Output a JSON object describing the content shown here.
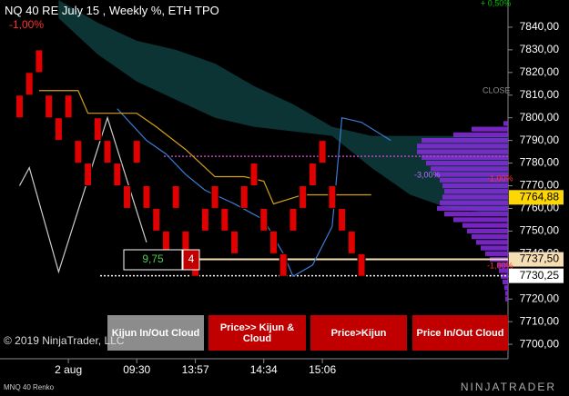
{
  "chart_data": {
    "type": "renko",
    "title": "NQ 40 RE July 15 , Weekly %, ETH TPO",
    "subtitle": "MNQ 40 Renko",
    "ylim": [
      7686.8,
      7852
    ],
    "yticks": [
      {
        "value": 7840,
        "label": "7840,00"
      },
      {
        "value": 7830,
        "label": "7830,00"
      },
      {
        "value": 7820,
        "label": "7820,00"
      },
      {
        "value": 7810,
        "label": "7810,00"
      },
      {
        "value": 7800,
        "label": "7800,00"
      },
      {
        "value": 7790,
        "label": "7790,00"
      },
      {
        "value": 7780,
        "label": "7780,00"
      },
      {
        "value": 7770,
        "label": "7770,00"
      },
      {
        "value": 7760,
        "label": "7760,00"
      },
      {
        "value": 7750,
        "label": "7750,00"
      },
      {
        "value": 7740,
        "label": "7740,00"
      },
      {
        "value": 7730,
        "label": "7730,00"
      },
      {
        "value": 7720,
        "label": "7720,00"
      },
      {
        "value": 7710,
        "label": "7710,00"
      },
      {
        "value": 7700,
        "label": "7700,00"
      }
    ],
    "xlim": [
      0,
      52
    ],
    "xticks": [
      {
        "value": 7,
        "label": "2 aug"
      },
      {
        "value": 14,
        "label": "09:30"
      },
      {
        "value": 20,
        "label": "13:57"
      },
      {
        "value": 27,
        "label": "14:34"
      },
      {
        "value": 33,
        "label": "15:06"
      }
    ],
    "bricks": {
      "color": "#e00000",
      "open": [
        7800,
        7810,
        7820,
        7810,
        7800,
        7800,
        7790,
        7780,
        7790,
        7790,
        7780,
        7770,
        7780,
        7770,
        7760,
        7750,
        7760,
        7750,
        7740,
        7750,
        7760,
        7760,
        7750,
        7760,
        7770,
        7760,
        7750,
        7740,
        7750,
        7760,
        7770,
        7780,
        7770,
        7760,
        7750,
        7740
      ],
      "close": [
        7810,
        7820,
        7830,
        7800,
        7790,
        7810,
        7780,
        7770,
        7800,
        7780,
        7770,
        7760,
        7790,
        7760,
        7750,
        7740,
        7770,
        7740,
        7730,
        7760,
        7770,
        7750,
        7740,
        7770,
        7780,
        7750,
        7740,
        7730,
        7760,
        7770,
        7780,
        7790,
        7760,
        7750,
        7740,
        7730
      ]
    },
    "cloud": {
      "color": "#0d3434",
      "x": [
        6,
        10,
        14,
        18,
        22,
        26,
        30,
        34,
        38,
        42,
        46,
        50,
        52
      ],
      "upper": [
        7852,
        7842,
        7834,
        7830,
        7824,
        7814,
        7806,
        7796,
        7792,
        7792,
        7792,
        7792,
        7792
      ],
      "lower": [
        7844,
        7828,
        7816,
        7808,
        7800,
        7796,
        7794,
        7792,
        7778,
        7766,
        7760,
        7758,
        7758
      ]
    },
    "kijun": {
      "color": "#d4a017",
      "x": [
        4,
        8,
        9,
        14,
        16,
        19,
        22,
        25,
        27,
        28,
        31,
        34,
        38
      ],
      "values": [
        7812,
        7812,
        7802,
        7802,
        7796,
        7786,
        7774,
        7774,
        7772,
        7762,
        7766,
        7766,
        7766
      ]
    },
    "tenkan": {
      "color": "#3a7bd5",
      "x": [
        12,
        15,
        17,
        19,
        21,
        24,
        27,
        29,
        30,
        32,
        34,
        35,
        37,
        40
      ],
      "values": [
        7804,
        7790,
        7784,
        7775,
        7768,
        7762,
        7755,
        7740,
        7730,
        7735,
        7752,
        7800,
        7798,
        7790
      ]
    },
    "price_line": {
      "color": "#cccccc",
      "x": [
        2,
        3,
        6,
        11,
        15
      ],
      "values": [
        7770,
        7778,
        7732,
        7800,
        7745
      ]
    },
    "profile": {
      "color": "#8a2be2",
      "prices": [
        7797.5,
        7795,
        7792.5,
        7790,
        7787.5,
        7785,
        7782.5,
        7780,
        7777.5,
        7775,
        7772.5,
        7770,
        7767.5,
        7765,
        7762.5,
        7760,
        7757.5,
        7755,
        7752.5,
        7750,
        7747.5,
        7745,
        7742.5,
        7740,
        7737.5,
        7735,
        7732.5,
        7730,
        7727.5,
        7725,
        7722.5,
        7720
      ],
      "volumes": [
        5,
        40,
        60,
        95,
        100,
        100,
        95,
        90,
        85,
        80,
        75,
        72,
        70,
        72,
        75,
        78,
        70,
        60,
        50,
        45,
        40,
        35,
        30,
        25,
        20,
        12,
        10,
        8,
        6,
        4,
        3,
        3
      ]
    },
    "levels": [
      {
        "value": 7783,
        "color": "#c040c0"
      },
      {
        "value": 7737.5,
        "color": "#f5deb3"
      },
      {
        "value": 7730.25,
        "color": "#ffffff"
      }
    ],
    "price_markers": [
      {
        "value": 7764.88,
        "label": "7764,88",
        "color": "#ffd700"
      },
      {
        "value": 7737.5,
        "label": "7737,50",
        "color": "#f5deb3"
      },
      {
        "value": 7730.25,
        "label": "7730,25",
        "color": "#ffffff"
      }
    ],
    "annotations": {
      "top_left": "-1,00%",
      "top_right": "+ 0,50%",
      "close": "CLOSE",
      "profile_low": "-3,00%",
      "profile_right": "-1,00%",
      "bottom_right": "-1,00%"
    }
  },
  "trade_box": {
    "distance": "9,75",
    "quantity": "4"
  },
  "buttons": [
    "Kijun In/Out Cloud",
    "Price>> Kijun & Cloud",
    "Price>Kijun",
    "Price In/Out Cloud"
  ],
  "copyright": "© 2019 NinjaTrader, LLC",
  "brand": "NINJATRADER"
}
